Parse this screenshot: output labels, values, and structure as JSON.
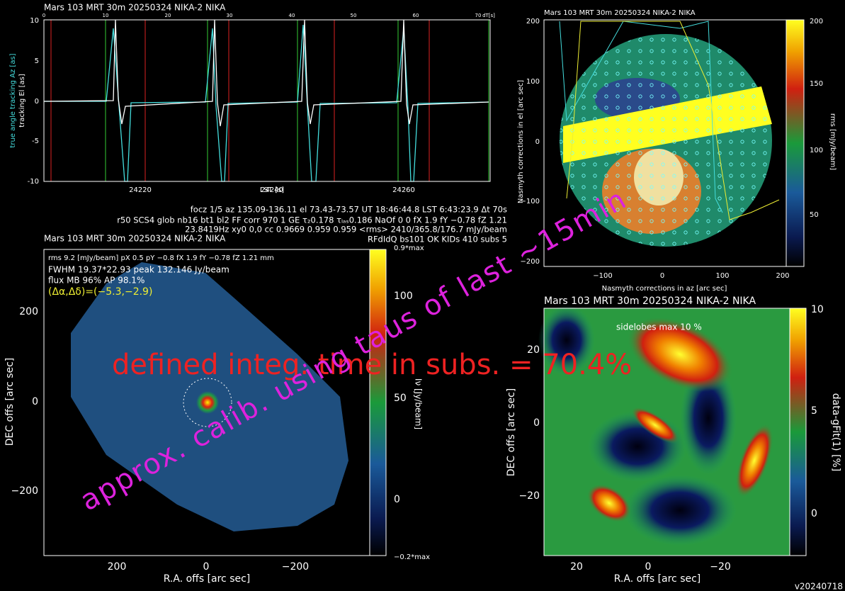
{
  "top_left": {
    "title": "Mars     103 MRT 30m  20250324 NIKA-2 NIKA",
    "top_ticks": [
      "0",
      "10",
      "20",
      "30",
      "40",
      "50",
      "60",
      "70",
      "dT[s]"
    ],
    "y_ticks": [
      "10",
      "5",
      "0",
      "-5",
      "-10"
    ],
    "x_ticks": [
      "24220",
      "24240",
      "24260"
    ],
    "x_label": "LST [s]",
    "y_label_az": "true angle tracking Az [as]",
    "y_label_el": "tracking El [as]"
  },
  "info": [
    "focz 1/5 az 135.09-136.11 el 73.43-73.57 UT 18:46:44.8 LST 6:43:23.9 Δt 70s",
    "r50 SCS4 glob nb16 bt1 bl2 FF corr 970 1 GE τ₂0.178 τₗₐₛ0.186 NaOf 0 0 fX 1.9 fY −0.78 fZ 1.21",
    "23.8419Hz xy0 0,0 cc 0.9669 0.959 0.959 <rms> 2410/365.8/176.7 mJy/beam",
    "RFdIdQ bs101 OK KIDs 410 subs 5"
  ],
  "map": {
    "title": "Mars       103 MRT 30m  20250324 NIKA-2 NIKA",
    "notes": [
      "rms 9.2 [mJy/beam] pX 0.5 pY −0.8 fX 1.9 fY −0.78 fZ 1.21 mm",
      "FWHM 19.37*22.93 peak 132.146 Jy/beam",
      "flux MB 96% AP 98.1%"
    ],
    "offset": "(Δα,Δδ)=(−5.3,−2.9)",
    "y_ticks": [
      "200",
      "0",
      "−200"
    ],
    "x_ticks": [
      "200",
      "0",
      "−200"
    ],
    "x_label": "R.A. offs [arc sec]",
    "y_label": "DEC offs [arc sec]",
    "cbar_ticks": [
      "100",
      "50",
      "0"
    ],
    "cbar_top": "0.9*max",
    "cbar_bottom": "−0.2*max",
    "cbar_label": "Iν [Jy/beam]"
  },
  "nasmyth": {
    "title": "Mars      103 MRT 30m  20250324 NIKA-2 NIKA",
    "y_ticks": [
      "200",
      "100",
      "0",
      "−100",
      "−200"
    ],
    "x_ticks": [
      "−100",
      "0",
      "100",
      "200"
    ],
    "x_label": "Nasmyth corrections in az [arc sec]",
    "y_label": "Nasmyth corrections in el [arc sec]",
    "cbar_ticks": [
      "200",
      "150",
      "100",
      "50"
    ],
    "cbar_label": "rms [mJy/beam]"
  },
  "residual": {
    "title": "Mars        103 MRT 30m  20250324 NIKA-2 NIKA",
    "note": "sidelobes max 10 %",
    "y_ticks": [
      "20",
      "0",
      "−20"
    ],
    "x_ticks": [
      "20",
      "0",
      "−20"
    ],
    "x_label": "R.A. offs [arc sec]",
    "y_label": "DEC offs [arc sec]",
    "cbar_ticks": [
      "10",
      "5",
      "0"
    ],
    "cbar_label": "data-gFit(1) [%]"
  },
  "overlay": {
    "integ": "defined integ. time in subs. = 70.4%",
    "calib": "approx. calib. using taus of last ~15min"
  },
  "version": "v20240718"
}
